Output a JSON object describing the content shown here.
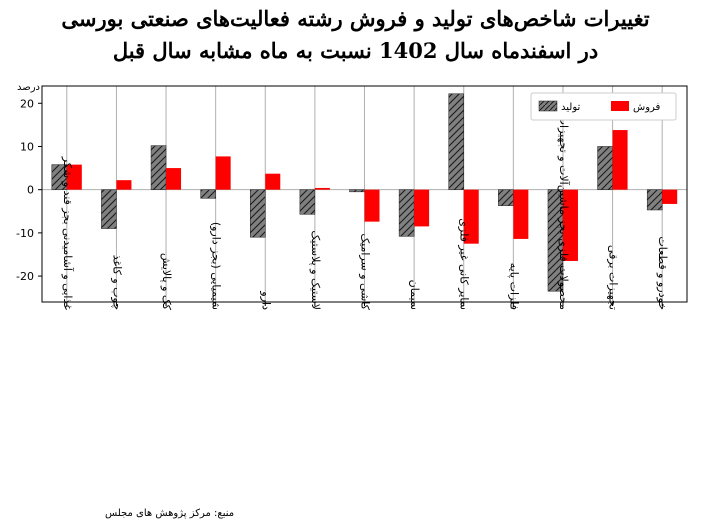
{
  "header": {
    "title_line1": "تغییرات شاخص‌های تولید و فروش رشته فعالیت‌های صنعتی بورسی",
    "title_line2": "در اسفندماه سال 1402 نسبت به ماه مشابه سال قبل"
  },
  "source": "منبع: مرکز پژوهش های مجلس",
  "chart_data": {
    "type": "bar",
    "ylabel": "درصد",
    "ylim": [
      -26,
      24
    ],
    "yticks": [
      20,
      10,
      0,
      -10,
      -20
    ],
    "ytick_labels": [
      "20",
      "10",
      "0",
      "-10",
      "-20"
    ],
    "grid": "vertical",
    "legend_position": "top-right",
    "categories": [
      "غذایی و آشامیدنی بجز قند و شکر",
      "چوب و کاغذ",
      "کک و پالایش",
      "شیمیایی (بجز دارو)",
      "دارو",
      "لاستیک و پلاستیک",
      "کاشی و سرامیک",
      "سیمان",
      "سایر کانی غیر فلزی",
      "فلزات پایه",
      "محصولات فلزی بجز ماشین‌آلات و تجهیزات",
      "تجهیزات برقی",
      "خودرو و قطعات"
    ],
    "series": [
      {
        "name": "تولید",
        "values": [
          5.8,
          -9,
          10.2,
          -2,
          -11,
          -5.7,
          -0.5,
          -10.8,
          22.2,
          -3.7,
          -23.5,
          10,
          -4.7
        ],
        "color": "#808080",
        "hatch": true
      },
      {
        "name": "فروش",
        "values": [
          5.8,
          2.2,
          5,
          7.7,
          3.7,
          0.4,
          -7.4,
          -8.5,
          -12.5,
          -11.4,
          -16.5,
          13.8,
          -3.3
        ],
        "color": "#ff0000",
        "hatch": false
      }
    ]
  }
}
